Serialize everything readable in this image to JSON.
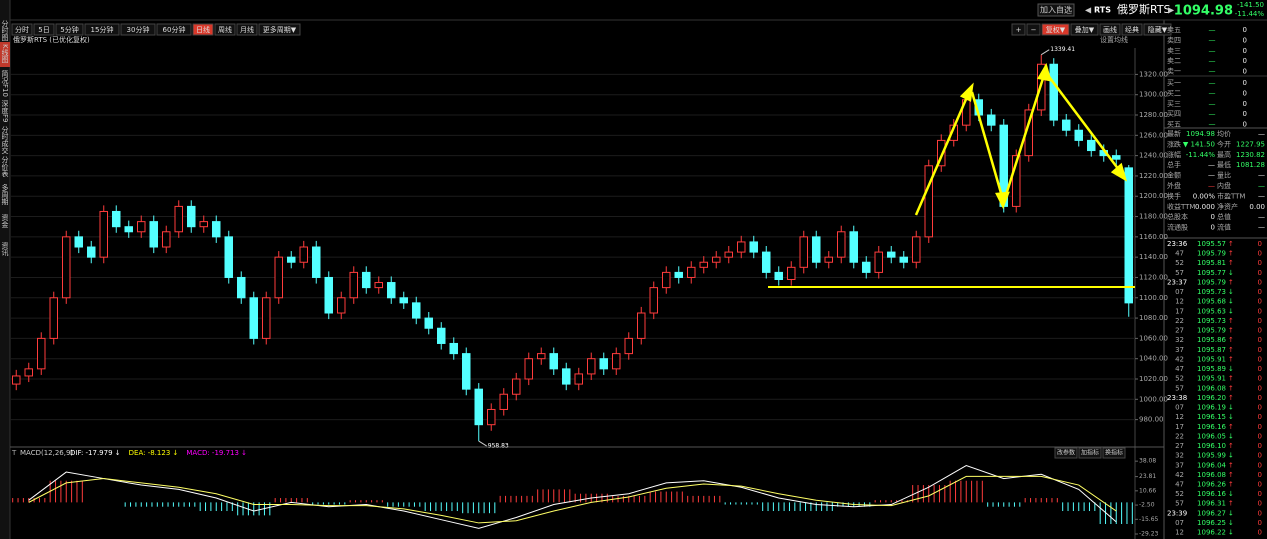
{
  "header": {
    "add_button": "加入自选",
    "code": "RTS",
    "name": "俄罗斯RTS",
    "price": "1094.98",
    "change": "-141.50",
    "change_pct": "-11.44%"
  },
  "sidebar_tabs": [
    "分时图",
    "K线图",
    "简况F10",
    "深度F9",
    "分时成交",
    "分价表",
    "多周期",
    "资金",
    "资讯"
  ],
  "active_sidebar_tab": 1,
  "period_tabs": [
    "分时",
    "5日",
    "5分钟",
    "15分钟",
    "30分钟",
    "60分钟",
    "日线",
    "周线",
    "月线",
    "更多周期▼"
  ],
  "active_period_tab": 6,
  "tools": [
    "+",
    "−",
    "复权▼",
    "叠加▼",
    "画线",
    "经典",
    "隐藏▼"
  ],
  "chart_data": [
    {
      "type": "candlestick",
      "subtitle": "俄罗斯RTS (已优化复权)",
      "ma_button": "设置均线",
      "up_color": "#ff3c3c",
      "down_color": "#54ffff",
      "grid": true,
      "open": [
        1015,
        1023,
        1030,
        1060,
        1100,
        1160,
        1150,
        1140,
        1185,
        1170,
        1165,
        1175,
        1150,
        1165,
        1190,
        1170,
        1175,
        1160,
        1120,
        1100,
        1060,
        1100,
        1140,
        1135,
        1150,
        1120,
        1085,
        1100,
        1125,
        1110,
        1115,
        1100,
        1095,
        1080,
        1070,
        1055,
        1045,
        1010,
        975,
        990,
        1005,
        1020,
        1040,
        1045,
        1030,
        1015,
        1025,
        1040,
        1030,
        1045,
        1060,
        1085,
        1110,
        1125,
        1120,
        1130,
        1135,
        1140,
        1145,
        1155,
        1145,
        1125,
        1118,
        1130,
        1160,
        1135,
        1140,
        1165,
        1135,
        1125,
        1145,
        1140,
        1135,
        1160,
        1230,
        1255,
        1270,
        1295,
        1280,
        1270,
        1190,
        1240,
        1285,
        1330,
        1275,
        1265,
        1255,
        1245,
        1240,
        1227.95
      ],
      "high": [
        1029,
        1036,
        1066,
        1106,
        1166,
        1166,
        1156,
        1191,
        1191,
        1176,
        1181,
        1181,
        1171,
        1196,
        1196,
        1181,
        1181,
        1166,
        1126,
        1106,
        1106,
        1146,
        1146,
        1156,
        1156,
        1126,
        1106,
        1131,
        1131,
        1121,
        1121,
        1106,
        1101,
        1086,
        1076,
        1061,
        1051,
        1016,
        996,
        1011,
        1026,
        1046,
        1051,
        1051,
        1036,
        1031,
        1046,
        1046,
        1051,
        1066,
        1091,
        1116,
        1131,
        1131,
        1136,
        1141,
        1146,
        1151,
        1161,
        1161,
        1151,
        1131,
        1136,
        1166,
        1166,
        1146,
        1171,
        1171,
        1141,
        1151,
        1151,
        1146,
        1166,
        1236,
        1261,
        1276,
        1301,
        1301,
        1286,
        1276,
        1246,
        1291,
        1339.41,
        1336,
        1281,
        1271,
        1261,
        1251,
        1246,
        1230.82
      ],
      "low": [
        1009,
        1017,
        1024,
        1054,
        1094,
        1144,
        1134,
        1134,
        1164,
        1159,
        1159,
        1144,
        1144,
        1159,
        1164,
        1164,
        1154,
        1114,
        1094,
        1054,
        1054,
        1094,
        1129,
        1129,
        1114,
        1079,
        1079,
        1094,
        1104,
        1104,
        1094,
        1089,
        1074,
        1064,
        1049,
        1039,
        1004,
        958.83,
        969,
        984,
        999,
        1014,
        1034,
        1024,
        1009,
        1009,
        1019,
        1024,
        1024,
        1039,
        1054,
        1079,
        1104,
        1114,
        1114,
        1124,
        1129,
        1134,
        1139,
        1139,
        1119,
        1112,
        1112,
        1124,
        1129,
        1129,
        1134,
        1129,
        1119,
        1119,
        1134,
        1129,
        1129,
        1154,
        1224,
        1249,
        1264,
        1274,
        1264,
        1184,
        1184,
        1234,
        1279,
        1269,
        1259,
        1249,
        1239,
        1234,
        1230,
        1081.28
      ],
      "close": [
        1023,
        1030,
        1060,
        1100,
        1160,
        1150,
        1140,
        1185,
        1170,
        1165,
        1175,
        1150,
        1165,
        1190,
        1170,
        1175,
        1160,
        1120,
        1100,
        1060,
        1100,
        1140,
        1135,
        1150,
        1120,
        1085,
        1100,
        1125,
        1110,
        1115,
        1100,
        1095,
        1080,
        1070,
        1055,
        1045,
        1010,
        975,
        990,
        1005,
        1020,
        1040,
        1045,
        1030,
        1015,
        1025,
        1040,
        1030,
        1045,
        1060,
        1085,
        1110,
        1125,
        1120,
        1130,
        1135,
        1140,
        1145,
        1155,
        1145,
        1125,
        1118,
        1130,
        1160,
        1135,
        1140,
        1165,
        1135,
        1125,
        1145,
        1140,
        1135,
        1160,
        1230,
        1255,
        1270,
        1295,
        1280,
        1270,
        1190,
        1240,
        1285,
        1330,
        1275,
        1265,
        1255,
        1245,
        1240,
        1236.48,
        1094.98
      ],
      "ylim": [
        955,
        1346
      ],
      "yticks": [
        {
          "value": 980,
          "label": "980.00"
        },
        {
          "value": 1000,
          "label": "1000.00"
        },
        {
          "value": 1020,
          "label": "1020.00"
        },
        {
          "value": 1040,
          "label": "1040.00"
        },
        {
          "value": 1060,
          "label": "1060.00"
        },
        {
          "value": 1080,
          "label": "1080.00"
        },
        {
          "value": 1100,
          "label": "1100.00"
        },
        {
          "value": 1120,
          "label": "1120.00"
        },
        {
          "value": 1140,
          "label": "1140.00"
        },
        {
          "value": 1160,
          "label": "1160.00"
        },
        {
          "value": 1180,
          "label": "1180.00"
        },
        {
          "value": 1200,
          "label": "1200.00"
        },
        {
          "value": 1220,
          "label": "1220.00"
        },
        {
          "value": 1240,
          "label": "1240.00"
        },
        {
          "value": 1260,
          "label": "1260.00"
        },
        {
          "value": 1280,
          "label": "1280.00"
        },
        {
          "value": 1300,
          "label": "1300.00"
        },
        {
          "value": 1320,
          "label": "1320.00"
        }
      ]
    },
    {
      "type": "macd",
      "title": "MACD(12,26,9)",
      "labels": [
        "DIF: -17.979 ↓",
        "DEA: -8.123 ↓",
        "MACD: -19.713 ↓"
      ],
      "label_colors": [
        "#ffffff",
        "#ffff00",
        "#ff00ff"
      ],
      "buttons": [
        "改参数",
        "加指标",
        "换指标"
      ],
      "dif_color": "#ffffff",
      "dea_color": "#ffff66",
      "up_color": "#ff3c3c",
      "down_color": "#54ffff",
      "dif": [
        2,
        28,
        22,
        16,
        12,
        4,
        -8,
        0,
        -4,
        -2,
        -8,
        -16,
        -24,
        -14,
        -2,
        4,
        8,
        18,
        20,
        14,
        4,
        -2,
        -4,
        -2,
        14,
        34,
        22,
        26,
        12,
        -18
      ],
      "dea": [
        0,
        18,
        22,
        18,
        14,
        8,
        -2,
        -2,
        -3,
        -3,
        -6,
        -12,
        -19,
        -17,
        -8,
        0,
        5,
        13,
        17,
        15,
        8,
        2,
        -2,
        -3,
        6,
        24,
        24,
        24,
        16,
        -8
      ],
      "hist": [
        4,
        20,
        0,
        -4,
        -4,
        -8,
        -12,
        4,
        -2,
        2,
        -4,
        -8,
        -10,
        6,
        12,
        8,
        6,
        10,
        6,
        -2,
        -8,
        -8,
        -4,
        2,
        16,
        20,
        -4,
        4,
        -8,
        -20
      ],
      "ylim": [
        -32,
        41
      ],
      "yticks": [
        38.08,
        23.81,
        10.66,
        {
          "value": -2.5,
          "label": "-2.50"
        },
        -15.65,
        -29.23
      ]
    }
  ],
  "order_book": [
    {
      "label": "卖五",
      "price": "—",
      "volume": "0"
    },
    {
      "label": "卖四",
      "price": "—",
      "volume": "0"
    },
    {
      "label": "卖三",
      "price": "—",
      "volume": "0"
    },
    {
      "label": "卖二",
      "price": "—",
      "volume": "0"
    },
    {
      "label": "卖一",
      "price": "—",
      "volume": "0"
    },
    {
      "label": "买一",
      "price": "—",
      "volume": "0"
    },
    {
      "label": "买二",
      "price": "—",
      "volume": "0"
    },
    {
      "label": "买三",
      "price": "—",
      "volume": "0"
    },
    {
      "label": "买四",
      "price": "—",
      "volume": "0"
    },
    {
      "label": "买五",
      "price": "—",
      "volume": "0"
    }
  ],
  "stats": [
    [
      {
        "label": "最新",
        "value": "1094.98",
        "color": "#33ff66"
      },
      {
        "label": "均价",
        "value": "—"
      }
    ],
    [
      {
        "label": "涨跌",
        "value": "▼ 141.50",
        "color": "#33ff66"
      },
      {
        "label": "今开",
        "value": "1227.95",
        "color": "#33ff66"
      }
    ],
    [
      {
        "label": "涨幅",
        "value": "-11.44%",
        "color": "#33ff66"
      },
      {
        "label": "最高",
        "value": "1230.82",
        "color": "#33ff66"
      }
    ],
    [
      {
        "label": "总手",
        "value": "—"
      },
      {
        "label": "最低",
        "value": "1081.28",
        "color": "#33ff66"
      }
    ],
    [
      {
        "label": "金额",
        "value": "—"
      },
      {
        "label": "量比",
        "value": "—"
      }
    ],
    [
      {
        "label": "外盘",
        "value": "—",
        "color": "#ff3c3c"
      },
      {
        "label": "内盘",
        "value": "—",
        "color": "#33ff66"
      }
    ],
    [
      {
        "label": "换手",
        "value": "0.00%"
      },
      {
        "label": "市盈TTM",
        "value": "—"
      }
    ],
    [
      {
        "label": "收益TTM",
        "value": "0.000"
      },
      {
        "label": "净资产",
        "value": "0.00"
      }
    ],
    [
      {
        "label": "总股本",
        "value": "0"
      },
      {
        "label": "总值",
        "value": "—"
      }
    ],
    [
      {
        "label": "流通股",
        "value": "0"
      },
      {
        "label": "流值",
        "value": "—"
      }
    ]
  ],
  "ticks": [
    {
      "time": "23:36",
      "price": "1095.57",
      "volume": "0",
      "arrow": "↑"
    },
    {
      "time": "47",
      "price": "1095.79",
      "volume": "0",
      "arrow": "↑"
    },
    {
      "time": "52",
      "price": "1095.81",
      "volume": "0",
      "arrow": "↑"
    },
    {
      "time": "57",
      "price": "1095.77",
      "volume": "0",
      "arrow": "↓"
    },
    {
      "time": "23:37",
      "price": "1095.79",
      "volume": "0",
      "arrow": "↑"
    },
    {
      "time": "07",
      "price": "1095.73",
      "volume": "0",
      "arrow": "↓"
    },
    {
      "time": "12",
      "price": "1095.68",
      "volume": "0",
      "arrow": "↓"
    },
    {
      "time": "17",
      "price": "1095.63",
      "volume": "0",
      "arrow": "↓"
    },
    {
      "time": "22",
      "price": "1095.73",
      "volume": "0",
      "arrow": "↑"
    },
    {
      "time": "27",
      "price": "1095.79",
      "volume": "0",
      "arrow": "↑"
    },
    {
      "time": "32",
      "price": "1095.86",
      "volume": "0",
      "arrow": "↑"
    },
    {
      "time": "37",
      "price": "1095.87",
      "volume": "0",
      "arrow": "↑"
    },
    {
      "time": "42",
      "price": "1095.91",
      "volume": "0",
      "arrow": "↑"
    },
    {
      "time": "47",
      "price": "1095.89",
      "volume": "0",
      "arrow": "↓"
    },
    {
      "time": "52",
      "price": "1095.91",
      "volume": "0",
      "arrow": "↑"
    },
    {
      "time": "57",
      "price": "1096.08",
      "volume": "0",
      "arrow": "↑"
    },
    {
      "time": "23:38",
      "price": "1096.20",
      "volume": "0",
      "arrow": "↑"
    },
    {
      "time": "07",
      "price": "1096.19",
      "volume": "0",
      "arrow": "↓"
    },
    {
      "time": "12",
      "price": "1096.15",
      "volume": "0",
      "arrow": "↓"
    },
    {
      "time": "17",
      "price": "1096.16",
      "volume": "0",
      "arrow": "↑"
    },
    {
      "time": "22",
      "price": "1096.05",
      "volume": "0",
      "arrow": "↓"
    },
    {
      "time": "27",
      "price": "1096.10",
      "volume": "0",
      "arrow": "↑"
    },
    {
      "time": "32",
      "price": "1095.99",
      "volume": "0",
      "arrow": "↓"
    },
    {
      "time": "37",
      "price": "1096.04",
      "volume": "0",
      "arrow": "↑"
    },
    {
      "time": "42",
      "price": "1096.08",
      "volume": "0",
      "arrow": "↑"
    },
    {
      "time": "47",
      "price": "1096.26",
      "volume": "0",
      "arrow": "↑"
    },
    {
      "time": "52",
      "price": "1096.16",
      "volume": "0",
      "arrow": "↓"
    },
    {
      "time": "57",
      "price": "1096.31",
      "volume": "0",
      "arrow": "↑"
    },
    {
      "time": "23:39",
      "price": "1096.27",
      "volume": "0",
      "arrow": "↓"
    },
    {
      "time": "07",
      "price": "1096.25",
      "volume": "0",
      "arrow": "↓"
    },
    {
      "time": "12",
      "price": "1096.22",
      "volume": "0",
      "arrow": "↓"
    }
  ]
}
